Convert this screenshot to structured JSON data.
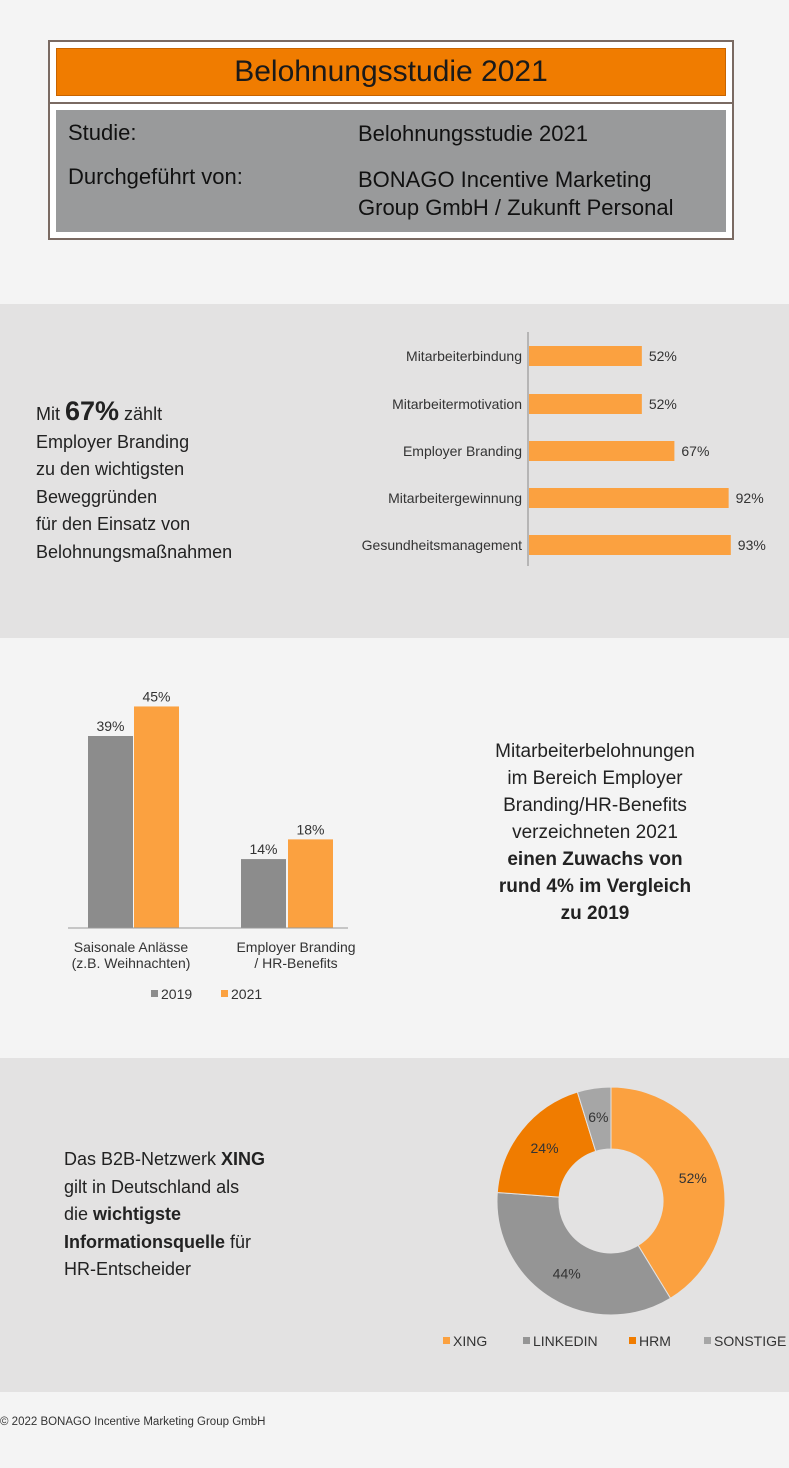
{
  "header": {
    "title": "Belohnungsstudie 2021",
    "study_label": "Studie:",
    "study_value": "Belohnungsstudie 2021",
    "conducted_label": "Durchgeführt von:",
    "conducted_value_line1": "BONAGO Incentive Marketing",
    "conducted_value_line2": "Group GmbH / Zukunft Personal"
  },
  "section1": {
    "text_mit": "Mit ",
    "text_big": "67%",
    "text_after": " zählt",
    "text_lines": [
      "Employer Branding",
      "zu den wichtigsten",
      "Beweggründen",
      "für den Einsatz von",
      "Belohnungsmaßnahmen"
    ]
  },
  "section2": {
    "text_lines": [
      "Mitarbeiterbelohnungen",
      "im Bereich Employer",
      "Branding/HR-Benefits",
      "verzeichneten 2021"
    ],
    "text_bold_lines": [
      "einen Zuwachs von",
      "rund 4% im Vergleich",
      "zu 2019"
    ]
  },
  "section3": {
    "text_line1": "Das B2B-Netzwerk ",
    "text_line1_bold": "XING",
    "text_line2": "gilt in Deutschland als",
    "text_line3": "die ",
    "text_line3_bold": "wichtigste",
    "text_line4_bold": "Informationsquelle",
    "text_line4": " für",
    "text_line5": "HR-Entscheider"
  },
  "footer": {
    "copyright": "© 2022 BONAGO Incentive Marketing Group GmbH"
  },
  "colors": {
    "orange": "#f07c00",
    "light_orange": "#fba140",
    "gray": "#8c8c8c",
    "light_gray": "#a0a0a0"
  },
  "chart_data": [
    {
      "type": "bar",
      "orientation": "horizontal",
      "categories": [
        "Mitarbeiterbindung",
        "Mitarbeitermotivation",
        "Employer Branding",
        "Mitarbeitergewinnung",
        "Gesundheitsmanagement"
      ],
      "values": [
        52,
        52,
        67,
        92,
        93
      ],
      "value_labels": [
        "52%",
        "52%",
        "67%",
        "92%",
        "93%"
      ],
      "xlim": [
        0,
        100
      ],
      "color": "#fba140"
    },
    {
      "type": "bar",
      "categories_lines": [
        [
          "Saisonale Anlässe",
          "(z.B. Weihnachten)"
        ],
        [
          "Employer Branding",
          "/ HR-Benefits"
        ]
      ],
      "series": [
        {
          "name": "2019",
          "values": [
            39,
            14
          ],
          "value_labels": [
            "39%",
            "14%"
          ],
          "color": "#8c8c8c"
        },
        {
          "name": "2021",
          "values": [
            45,
            18
          ],
          "value_labels": [
            "45%",
            "18%"
          ],
          "color": "#fba140"
        }
      ],
      "ylim": [
        0,
        50
      ],
      "legend_placement": "bottom"
    },
    {
      "type": "pie",
      "donut": true,
      "slices": [
        {
          "name": "XING",
          "value": 52,
          "label": "52%",
          "color": "#fba140"
        },
        {
          "name": "LINKEDIN",
          "value": 44,
          "label": "44%",
          "color": "#959595"
        },
        {
          "name": "HRM",
          "value": 24,
          "label": "24%",
          "color": "#f07c00"
        },
        {
          "name": "SONSTIGE",
          "value": 6,
          "label": "6%",
          "color": "#a6a6a6"
        }
      ],
      "legend_placement": "bottom"
    }
  ]
}
